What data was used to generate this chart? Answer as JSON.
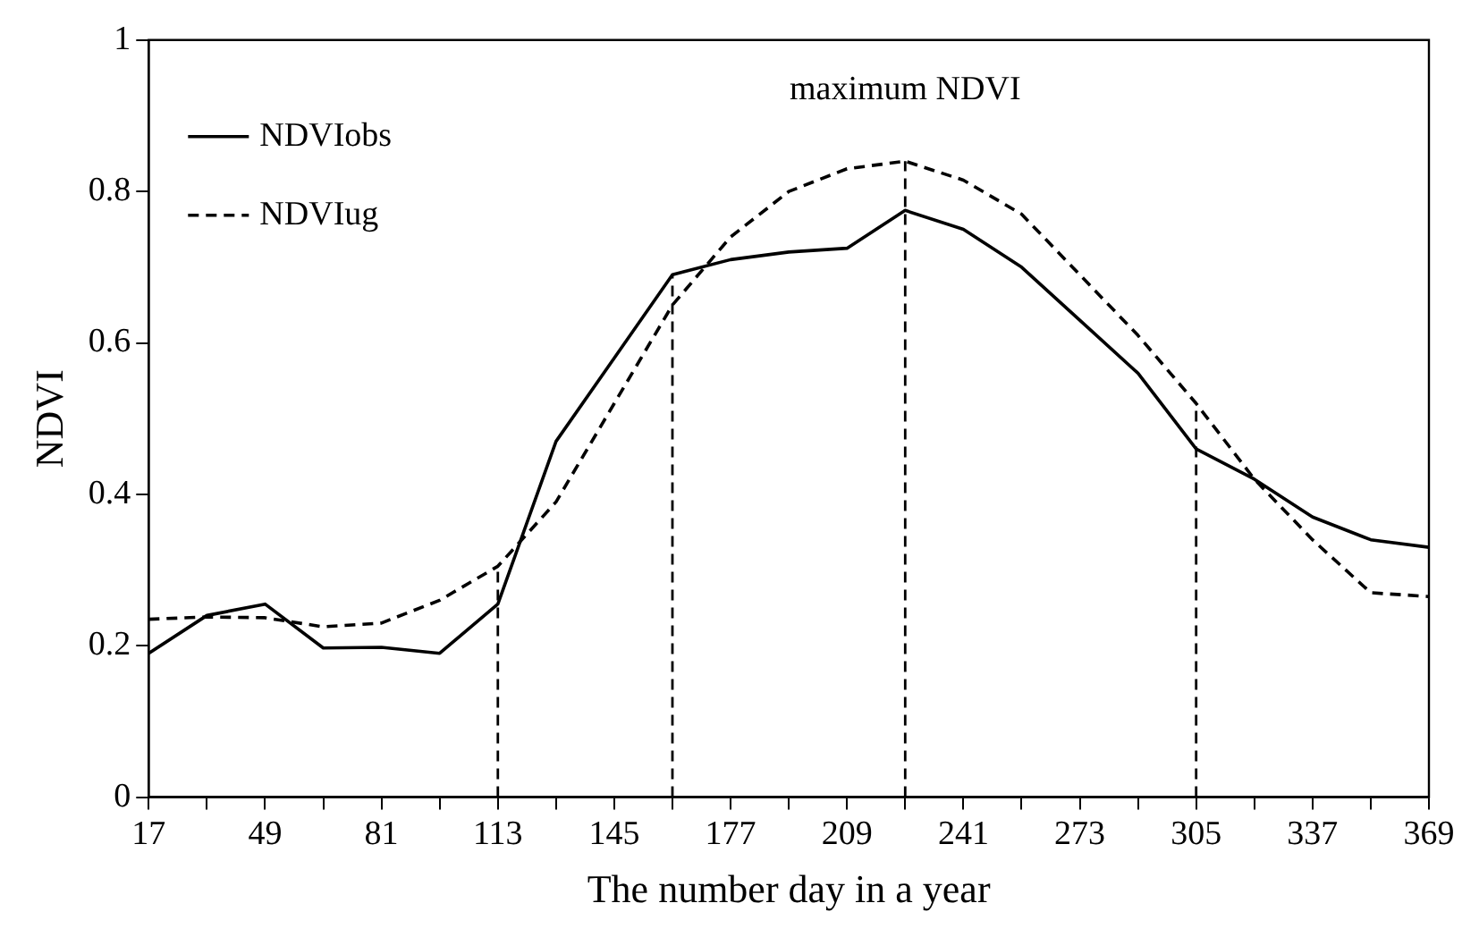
{
  "chart_data": {
    "type": "line",
    "xlabel": "The number day in a year",
    "ylabel": "NDVI",
    "x": [
      17,
      33,
      49,
      65,
      81,
      97,
      113,
      129,
      145,
      161,
      177,
      193,
      209,
      225,
      241,
      257,
      273,
      289,
      305,
      321,
      337,
      353,
      369
    ],
    "series": [
      {
        "name": "NDVIobs",
        "color": "#000000",
        "line_style": "solid",
        "values": [
          0.19,
          0.24,
          0.255,
          0.197,
          0.198,
          0.19,
          0.255,
          0.47,
          0.58,
          0.69,
          0.71,
          0.72,
          0.725,
          0.775,
          0.75,
          0.7,
          0.63,
          0.56,
          0.46,
          0.42,
          0.37,
          0.34,
          0.33
        ]
      },
      {
        "name": "NDVIug",
        "color": "#000000",
        "line_style": "dashed",
        "values": [
          0.235,
          0.238,
          0.237,
          0.225,
          0.23,
          0.26,
          0.305,
          0.39,
          0.52,
          0.65,
          0.74,
          0.8,
          0.83,
          0.84,
          0.815,
          0.77,
          0.69,
          0.61,
          0.52,
          0.42,
          0.34,
          0.27,
          0.265
        ]
      }
    ],
    "xlim": [
      17,
      369
    ],
    "xticks": [
      17,
      {
        "value": 33,
        "label": null
      },
      49,
      {
        "value": 65,
        "label": null
      },
      81,
      {
        "value": 97,
        "label": null
      },
      113,
      {
        "value": 129,
        "label": null
      },
      145,
      {
        "value": 161,
        "label": null
      },
      177,
      {
        "value": 193,
        "label": null
      },
      209,
      {
        "value": 225,
        "label": null
      },
      241,
      {
        "value": 257,
        "label": null
      },
      273,
      {
        "value": 289,
        "label": null
      },
      305,
      {
        "value": 321,
        "label": null
      },
      337,
      {
        "value": 353,
        "label": null
      },
      369
    ],
    "ylim": [
      0,
      1
    ],
    "yticks": [
      0,
      0.2,
      0.4,
      0.6,
      0.8,
      1
    ],
    "ref_lines": [
      {
        "axis": "x",
        "value": 113,
        "line_style": "dashed"
      },
      {
        "axis": "x",
        "value": 161,
        "line_style": "dashed"
      },
      {
        "axis": "x",
        "value": 225,
        "line_style": "dashed",
        "label": "maximum NDVI"
      },
      {
        "axis": "x",
        "value": 305,
        "line_style": "dashed"
      }
    ],
    "grid": false,
    "legend": "top left",
    "marker": "none"
  }
}
